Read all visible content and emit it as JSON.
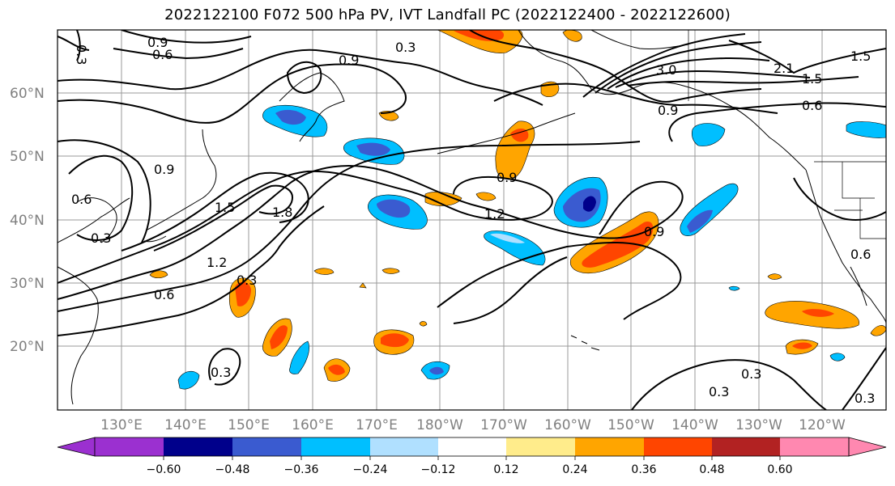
{
  "title": "2022122100 F072 500 hPa PV, IVT Landfall PC (2022122400 - 2022122600)",
  "map": {
    "projection": "cylindrical",
    "lon_range": [
      120,
      250
    ],
    "lat_range": [
      10,
      70
    ],
    "gridlines": true,
    "lat_ticks": [
      {
        "value": 60,
        "label": "60°N"
      },
      {
        "value": 50,
        "label": "50°N"
      },
      {
        "value": 40,
        "label": "40°N"
      },
      {
        "value": 30,
        "label": "30°N"
      },
      {
        "value": 20,
        "label": "20°N"
      }
    ],
    "lon_ticks": [
      {
        "value": 130,
        "label": "130°E"
      },
      {
        "value": 140,
        "label": "140°E"
      },
      {
        "value": 150,
        "label": "150°E"
      },
      {
        "value": 160,
        "label": "160°E"
      },
      {
        "value": 170,
        "label": "170°E"
      },
      {
        "value": 180,
        "label": "180°W"
      },
      {
        "value": 190,
        "label": "170°W"
      },
      {
        "value": 200,
        "label": "160°W"
      },
      {
        "value": 210,
        "label": "150°W"
      },
      {
        "value": 220,
        "label": "140°W"
      },
      {
        "value": 230,
        "label": "130°W"
      },
      {
        "value": 240,
        "label": "120°W"
      }
    ]
  },
  "contour_labels": [
    {
      "text": "0.3"
    },
    {
      "text": "0.9"
    },
    {
      "text": "0.6"
    },
    {
      "text": "0.3"
    },
    {
      "text": "0.9"
    },
    {
      "text": "3.0"
    },
    {
      "text": "2.1"
    },
    {
      "text": "1.5"
    },
    {
      "text": "1.5"
    },
    {
      "text": "0.6"
    },
    {
      "text": "0.9"
    },
    {
      "text": "0.9"
    },
    {
      "text": "0.6"
    },
    {
      "text": "0.3"
    },
    {
      "text": "1.5"
    },
    {
      "text": "1.8"
    },
    {
      "text": "1.2"
    },
    {
      "text": "0.6"
    },
    {
      "text": "0.3"
    },
    {
      "text": "0.9"
    },
    {
      "text": "1.2"
    },
    {
      "text": "0.9"
    },
    {
      "text": "0.3"
    },
    {
      "text": "0.3"
    },
    {
      "text": "0.3"
    },
    {
      "text": "0.3"
    },
    {
      "text": "0.6"
    }
  ],
  "colorbar": {
    "colors": [
      "#9b30d0",
      "#00008b",
      "#3a5bd0",
      "#00bfff",
      "#b0e0ff",
      "#ffffff",
      "#ffec8b",
      "#ffa500",
      "#ff4500",
      "#b22222",
      "#ff88b0"
    ],
    "tick_labels": [
      "−0.60",
      "−0.48",
      "−0.36",
      "−0.24",
      "−0.12",
      "0.12",
      "0.24",
      "0.36",
      "0.48",
      "0.60"
    ]
  }
}
